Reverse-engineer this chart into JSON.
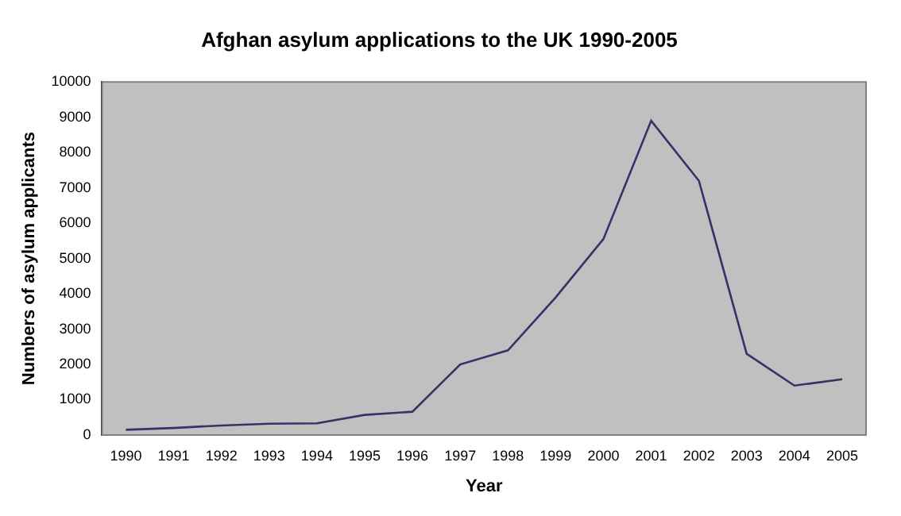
{
  "chart_data": {
    "type": "line",
    "title": "Afghan asylum applications to the UK 1990-2005",
    "xlabel": "Year",
    "ylabel": "Numbers of asylum applicants",
    "categories": [
      "1990",
      "1991",
      "1992",
      "1993",
      "1994",
      "1995",
      "1996",
      "1997",
      "1998",
      "1999",
      "2000",
      "2001",
      "2002",
      "2003",
      "2004",
      "2005"
    ],
    "series": [
      {
        "color": "#333366",
        "values": [
          150,
          200,
          270,
          320,
          330,
          570,
          660,
          2000,
          2400,
          3900,
          5550,
          8900,
          7200,
          2300,
          1400,
          1580
        ]
      }
    ],
    "ylim": [
      0,
      10000
    ],
    "yticks": [
      0,
      1000,
      2000,
      3000,
      4000,
      5000,
      6000,
      7000,
      8000,
      9000,
      10000
    ],
    "grid": false,
    "legend": false,
    "marker": "none",
    "line_style": "solid"
  }
}
